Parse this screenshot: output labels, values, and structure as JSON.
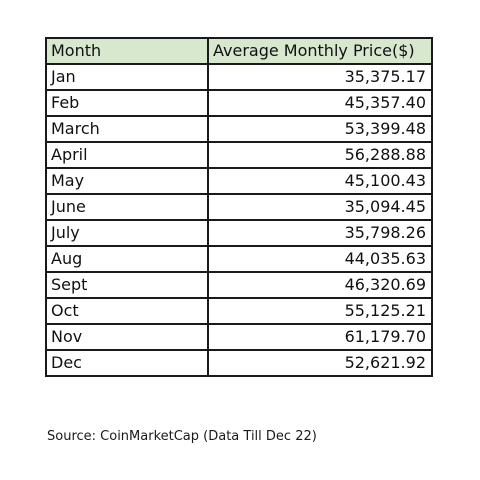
{
  "table": {
    "headers": [
      "Month",
      "Average Monthly Price($)"
    ],
    "rows": [
      {
        "month": "Jan",
        "price": "35,375.17"
      },
      {
        "month": "Feb",
        "price": "45,357.40"
      },
      {
        "month": "March",
        "price": "53,399.48"
      },
      {
        "month": "April",
        "price": "56,288.88"
      },
      {
        "month": "May",
        "price": "45,100.43"
      },
      {
        "month": "June",
        "price": "35,094.45"
      },
      {
        "month": "July",
        "price": "35,798.26"
      },
      {
        "month": "Aug",
        "price": "44,035.63"
      },
      {
        "month": "Sept",
        "price": "46,320.69"
      },
      {
        "month": "Oct",
        "price": "55,125.21"
      },
      {
        "month": "Nov",
        "price": "61,179.70"
      },
      {
        "month": "Dec",
        "price": "52,621.92"
      }
    ],
    "header_color": "#d8e8cf"
  },
  "source": "Source: CoinMarketCap (Data Till Dec 22)"
}
